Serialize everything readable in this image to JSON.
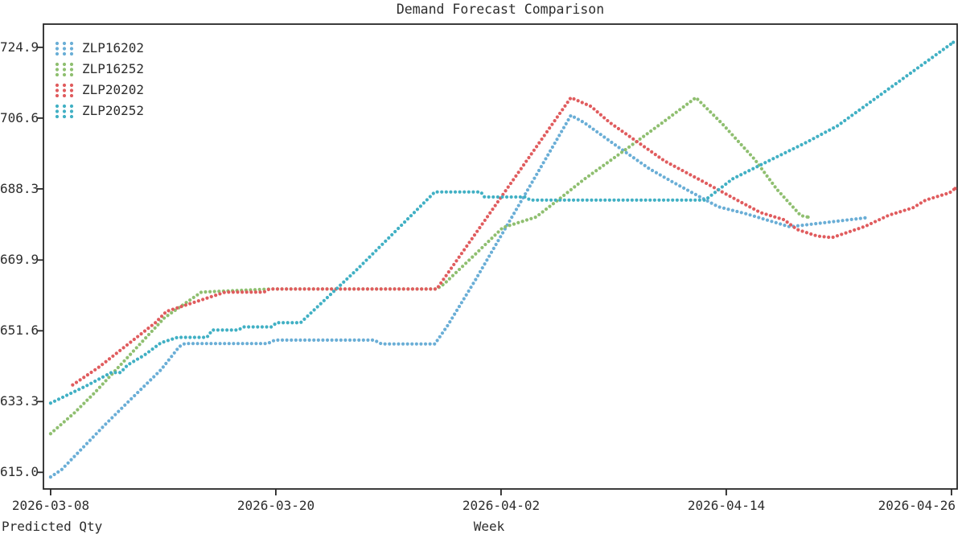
{
  "title": "Demand Forecast Comparison",
  "axes": {
    "x_title": "Week",
    "y_title": "Predicted Qty"
  },
  "chart_data": {
    "type": "line",
    "style": "dotted",
    "title": "Demand Forecast Comparison",
    "xlabel": "Week",
    "ylabel": "Predicted Qty",
    "grid": false,
    "legend_position": "upper-left",
    "x_day_zero": "2026-03-08",
    "x_tick_labels": [
      "2026-03-08",
      "2026-03-20",
      "2026-04-02",
      "2026-04-14",
      "2026-04-26"
    ],
    "x_tick_days": [
      0,
      12.25,
      24.5,
      36.75,
      49
    ],
    "x_range_days": [
      -0.39,
      49.31
    ],
    "y_tick_labels": [
      "724.9",
      "706.6",
      "688.3",
      "669.9",
      "651.6",
      "633.3",
      "615.0"
    ],
    "y_range": [
      610.7,
      730.9
    ],
    "frame_color": "#262626",
    "series": [
      {
        "name": "ZLP16202",
        "color": "#6aaed6",
        "points": [
          [
            0,
            613.8
          ],
          [
            0.6,
            615.7
          ],
          [
            3,
            627.5
          ],
          [
            4.3,
            633.6
          ],
          [
            6,
            641.5
          ],
          [
            7,
            647.5
          ],
          [
            7.3,
            648.3
          ],
          [
            11.8,
            648.3
          ],
          [
            12.2,
            649.2
          ],
          [
            17.6,
            649.2
          ],
          [
            18,
            648.2
          ],
          [
            20.9,
            648.2
          ],
          [
            21.6,
            653.0
          ],
          [
            23.1,
            664.7
          ],
          [
            28.3,
            707.3
          ],
          [
            29,
            705.5
          ],
          [
            30.7,
            699.7
          ],
          [
            32.6,
            693.4
          ],
          [
            33.9,
            689.9
          ],
          [
            36.3,
            683.7
          ],
          [
            37.8,
            681.9
          ],
          [
            40.2,
            678.5
          ],
          [
            44.3,
            680.8
          ]
        ]
      },
      {
        "name": "ZLP16252",
        "color": "#8fbf70",
        "points": [
          [
            0,
            625.0
          ],
          [
            1.3,
            630.4
          ],
          [
            2.4,
            635.6
          ],
          [
            5.2,
            649.9
          ],
          [
            6.2,
            655.0
          ],
          [
            8.2,
            661.6
          ],
          [
            11.9,
            662.4
          ],
          [
            21,
            662.4
          ],
          [
            21.4,
            663.7
          ],
          [
            23.1,
            671.4
          ],
          [
            24.6,
            678.3
          ],
          [
            26.4,
            681.0
          ],
          [
            27.7,
            685.8
          ],
          [
            29,
            690.7
          ],
          [
            31.2,
            698.2
          ],
          [
            33.3,
            705.5
          ],
          [
            35.1,
            711.9
          ],
          [
            36.5,
            705.3
          ],
          [
            38.3,
            695.9
          ],
          [
            39.5,
            688.2
          ],
          [
            40.8,
            681.4
          ],
          [
            41.2,
            681.0
          ]
        ]
      },
      {
        "name": "ZLP20202",
        "color": "#e05c5e",
        "points": [
          [
            1.2,
            637.6
          ],
          [
            2.6,
            642.1
          ],
          [
            5.7,
            653.7
          ],
          [
            6.3,
            656.6
          ],
          [
            9.5,
            661.6
          ],
          [
            11.6,
            661.6
          ],
          [
            11.9,
            662.4
          ],
          [
            21,
            662.4
          ],
          [
            28.3,
            711.9
          ],
          [
            29.4,
            709.6
          ],
          [
            30.4,
            705.5
          ],
          [
            32.2,
            699.5
          ],
          [
            33.4,
            695.5
          ],
          [
            35.6,
            689.9
          ],
          [
            37.3,
            685.5
          ],
          [
            38.6,
            682.2
          ],
          [
            39.9,
            680.3
          ],
          [
            40.6,
            677.8
          ],
          [
            41.7,
            676.1
          ],
          [
            42.5,
            675.7
          ],
          [
            43,
            676.5
          ],
          [
            44.3,
            678.6
          ],
          [
            45.6,
            681.5
          ],
          [
            46.9,
            683.4
          ],
          [
            47.6,
            685.4
          ],
          [
            48.9,
            687.3
          ],
          [
            49.2,
            688.4
          ]
        ]
      },
      {
        "name": "ZLP20252",
        "color": "#41b0c4",
        "points": [
          [
            0,
            632.9
          ],
          [
            2,
            637.5
          ],
          [
            3.3,
            640.8
          ],
          [
            3.8,
            640.8
          ],
          [
            4.2,
            642.8
          ],
          [
            5.1,
            645.3
          ],
          [
            6,
            648.5
          ],
          [
            6.9,
            649.9
          ],
          [
            8.5,
            649.9
          ],
          [
            8.8,
            651.8
          ],
          [
            10.2,
            651.8
          ],
          [
            10.5,
            652.6
          ],
          [
            12,
            652.6
          ],
          [
            12.3,
            653.7
          ],
          [
            13.6,
            653.7
          ],
          [
            16.7,
            667.6
          ],
          [
            20.9,
            687.5
          ],
          [
            23.4,
            687.5
          ],
          [
            23.6,
            686.2
          ],
          [
            25.8,
            686.2
          ],
          [
            26.1,
            685.4
          ],
          [
            35.6,
            685.4
          ],
          [
            37.1,
            690.9
          ],
          [
            39.3,
            696.1
          ],
          [
            41.1,
            700.3
          ],
          [
            42.8,
            704.6
          ],
          [
            49.1,
            726.2
          ]
        ]
      }
    ]
  }
}
